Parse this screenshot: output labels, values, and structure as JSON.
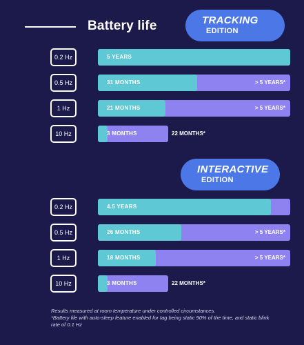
{
  "header": {
    "title": "Battery life"
  },
  "chart_data": [
    {
      "type": "bar",
      "title": "TRACKING EDITION",
      "badge": {
        "big": "TRACKING",
        "small": "EDITION"
      },
      "categories": [
        "0.2 Hz",
        "0.5 Hz",
        "1 Hz",
        "10 Hz"
      ],
      "scale_max_months": 60,
      "series": [
        {
          "name": "Battery life",
          "values_months": [
            60,
            31,
            21,
            3
          ],
          "labels": [
            "5 YEARS",
            "31 MONTHS",
            "21 MONTHS",
            "3 MONTHS"
          ]
        },
        {
          "name": "Battery life with auto-sleep*",
          "values_months": [
            60,
            60,
            60,
            22
          ],
          "labels": [
            "",
            "> 5 YEARS*",
            "> 5 YEARS*",
            "22 MONTHS*"
          ]
        }
      ]
    },
    {
      "type": "bar",
      "title": "INTERACTIVE EDITION",
      "badge": {
        "big": "INTERACTIVE",
        "small": "EDITION"
      },
      "categories": [
        "0.2 Hz",
        "0.5 Hz",
        "1 Hz",
        "10 Hz"
      ],
      "scale_max_months": 60,
      "series": [
        {
          "name": "Battery life",
          "values_months": [
            54,
            26,
            18,
            3
          ],
          "labels": [
            "4.5 YEARS",
            "26 MONTHS",
            "18 MONTHS",
            "3 MONTHS"
          ]
        },
        {
          "name": "Battery life with auto-sleep*",
          "values_months": [
            60,
            60,
            60,
            22
          ],
          "labels": [
            "",
            "> 5 YEARS*",
            "> 5 YEARS*",
            "22 MONTHS*"
          ]
        }
      ]
    }
  ],
  "footnote": {
    "line1": "Results measured at room temperature under controlled circumstances.",
    "line2": "*Battery life with auto-sleep feature enabled for tag being static 90% of the time, and static blink rate of 0.1 Hz"
  },
  "colors": {
    "background": "#1b1a4a",
    "primary_bar": "#5ec8d4",
    "secondary_bar": "#8d82ef",
    "badge": "#4b78e6"
  }
}
